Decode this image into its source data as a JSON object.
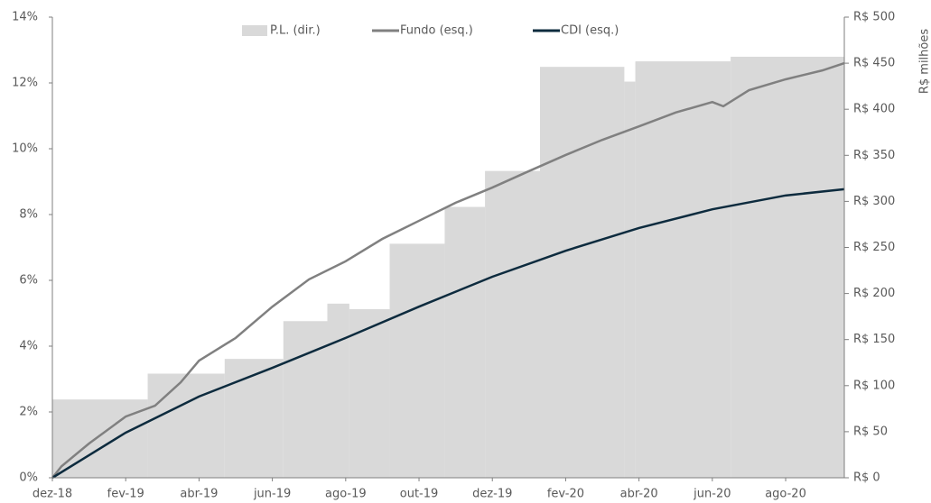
{
  "chart_data": {
    "type": "line",
    "legend": "top",
    "y2_label": "R$ milhões",
    "xlim": [
      0,
      21.6
    ],
    "xticks": [
      {
        "value": 0,
        "label": "dez-18"
      },
      {
        "value": 2,
        "label": "fev-19"
      },
      {
        "value": 4,
        "label": "abr-19"
      },
      {
        "value": 6,
        "label": "jun-19"
      },
      {
        "value": 8,
        "label": "ago-19"
      },
      {
        "value": 10,
        "label": "out-19"
      },
      {
        "value": 12,
        "label": "dez-19"
      },
      {
        "value": 14,
        "label": "fev-20"
      },
      {
        "value": 16,
        "label": "abr-20"
      },
      {
        "value": 18,
        "label": "jun-20"
      },
      {
        "value": 20,
        "label": "ago-20"
      }
    ],
    "ylim": [
      0,
      14
    ],
    "yticks": [
      {
        "value": 0,
        "label": "0%"
      },
      {
        "value": 2,
        "label": "2%"
      },
      {
        "value": 4,
        "label": "4%"
      },
      {
        "value": 6,
        "label": "6%"
      },
      {
        "value": 8,
        "label": "8%"
      },
      {
        "value": 10,
        "label": "10%"
      },
      {
        "value": 12,
        "label": "12%"
      },
      {
        "value": 14,
        "label": "14%"
      }
    ],
    "y2lim": [
      0,
      500
    ],
    "y2ticks": [
      {
        "value": 0,
        "label": "R$ 0"
      },
      {
        "value": 50,
        "label": "R$ 50"
      },
      {
        "value": 100,
        "label": "R$ 100"
      },
      {
        "value": 150,
        "label": "R$ 150"
      },
      {
        "value": 200,
        "label": "R$ 200"
      },
      {
        "value": 250,
        "label": "R$ 250"
      },
      {
        "value": 300,
        "label": "R$ 300"
      },
      {
        "value": 350,
        "label": "R$ 350"
      },
      {
        "value": 400,
        "label": "R$ 400"
      },
      {
        "value": 450,
        "label": "R$ 450"
      },
      {
        "value": 500,
        "label": "R$ 500"
      }
    ],
    "series": [
      {
        "name": "P.L. (dir.)",
        "type": "step-area",
        "axis": "y2",
        "color": "#d9d9d9",
        "x": [
          0,
          2.6,
          4.7,
          6.3,
          7.5,
          8.1,
          9.2,
          10.7,
          11.8,
          13.3,
          15.6,
          15.9,
          18.5
        ],
        "values": [
          85,
          113,
          129,
          170,
          189,
          183,
          254,
          294,
          333,
          446,
          430,
          452,
          457
        ]
      },
      {
        "name": "Fundo (esq.)",
        "type": "line",
        "color": "#808080",
        "x": [
          0,
          0.25,
          1,
          2,
          2.8,
          3.5,
          4,
          5,
          6,
          7,
          8,
          9,
          10,
          11,
          12,
          13,
          14,
          15,
          16,
          17,
          18,
          18.3,
          19,
          20,
          21,
          21.6
        ],
        "values": [
          0,
          0.35,
          1.04,
          1.86,
          2.19,
          2.9,
          3.56,
          4.25,
          5.2,
          6.03,
          6.58,
          7.26,
          7.81,
          8.36,
          8.82,
          9.32,
          9.81,
          10.27,
          10.68,
          11.1,
          11.42,
          11.29,
          11.78,
          12.11,
          12.38,
          12.6
        ]
      },
      {
        "name": "CDI (esq.)",
        "type": "line",
        "color": "#0d2b3e",
        "x": [
          0,
          2,
          4,
          6,
          8,
          10,
          12,
          14,
          16,
          18,
          20,
          21.6
        ],
        "values": [
          0,
          1.37,
          2.47,
          3.34,
          4.25,
          5.2,
          6.11,
          6.9,
          7.59,
          8.16,
          8.58,
          8.77
        ]
      }
    ]
  }
}
